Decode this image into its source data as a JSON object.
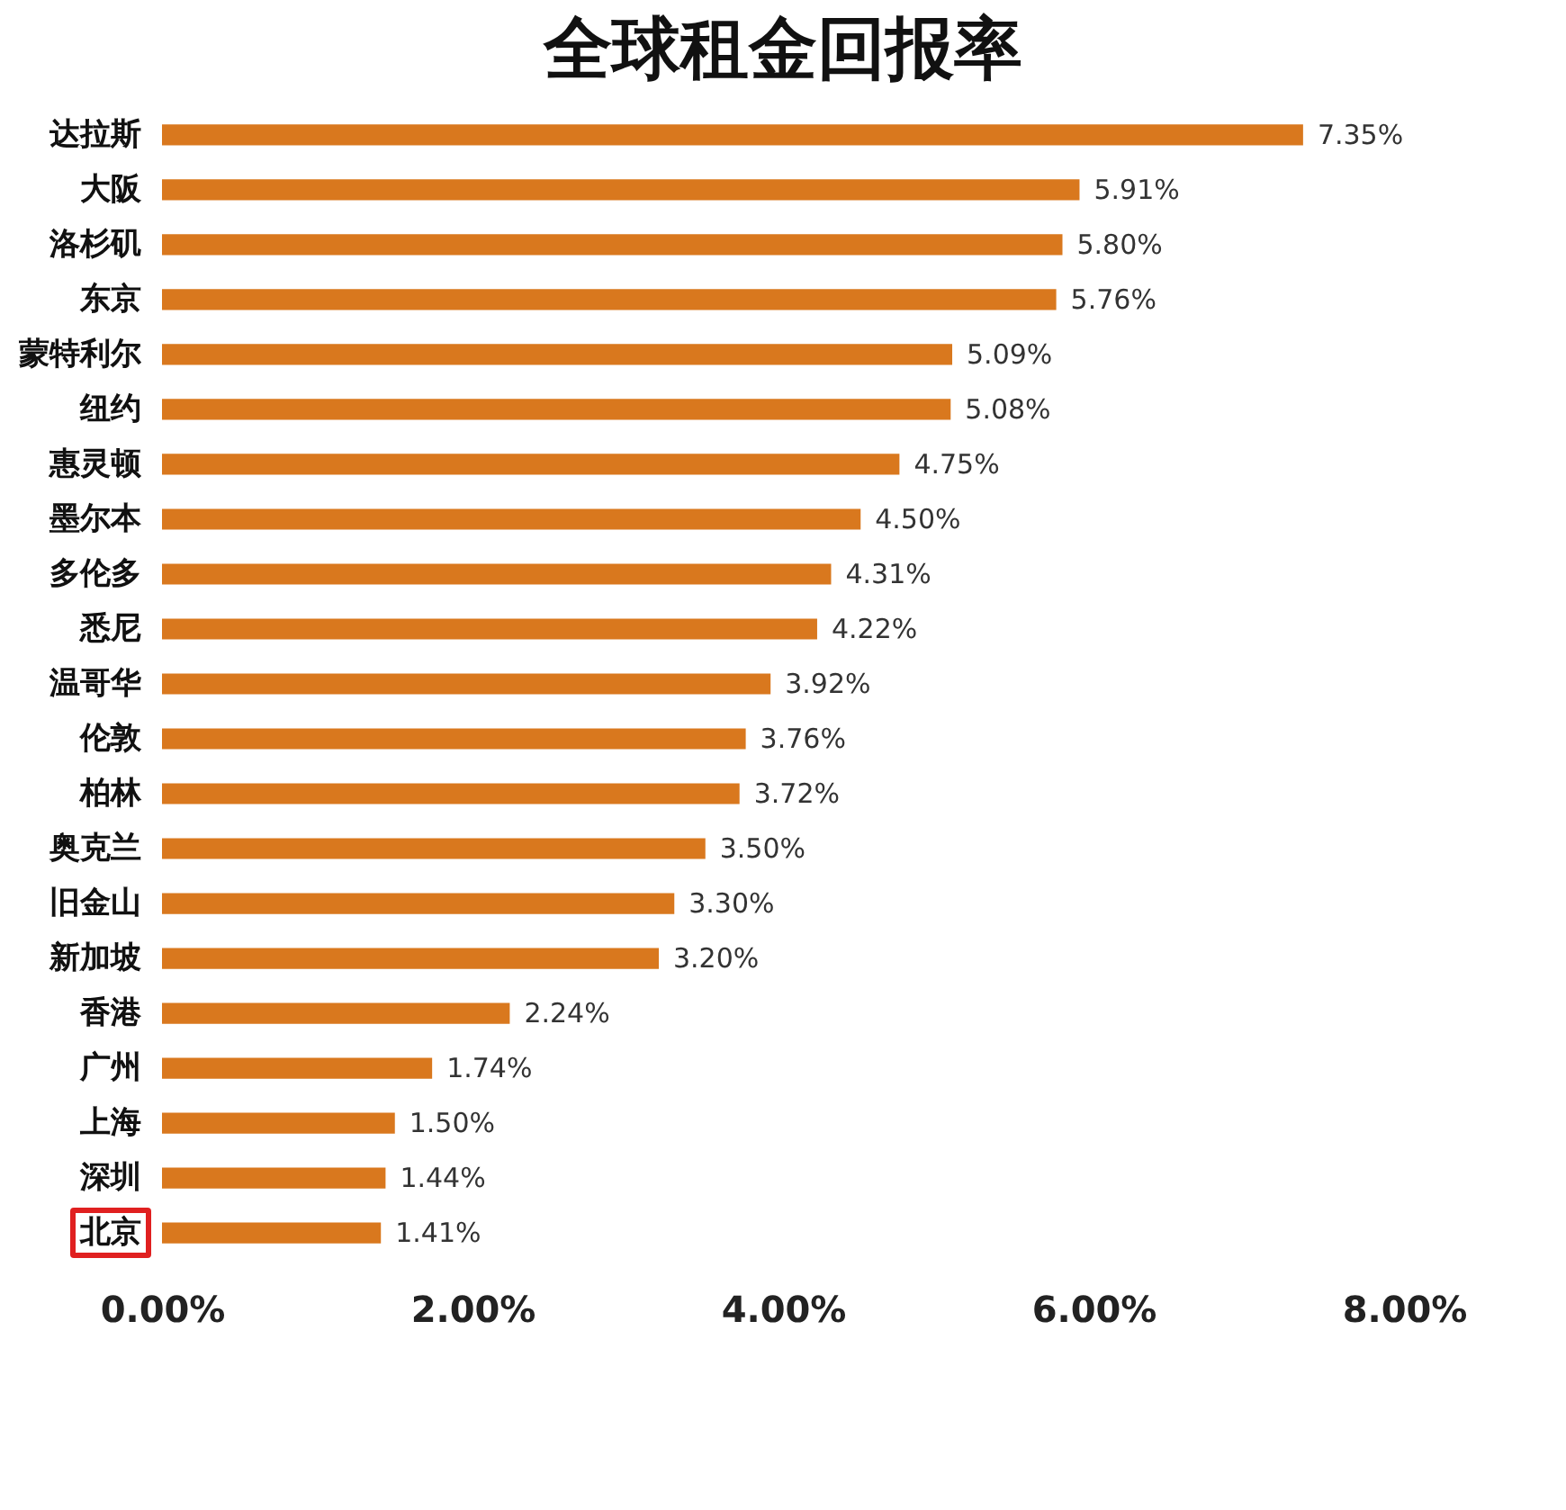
{
  "chart_data": {
    "type": "bar",
    "orientation": "horizontal",
    "title": "全球租金回报率",
    "categories": [
      "达拉斯",
      "大阪",
      "洛杉矶",
      "东京",
      "蒙特利尔",
      "纽约",
      "惠灵顿",
      "墨尔本",
      "多伦多",
      "悉尼",
      "温哥华",
      "伦敦",
      "柏林",
      "奥克兰",
      "旧金山",
      "新加坡",
      "香港",
      "广州",
      "上海",
      "深圳",
      "北京"
    ],
    "values": [
      7.35,
      5.91,
      5.8,
      5.76,
      5.09,
      5.08,
      4.75,
      4.5,
      4.31,
      4.22,
      3.92,
      3.76,
      3.72,
      3.5,
      3.3,
      3.2,
      2.24,
      1.74,
      1.5,
      1.44,
      1.41
    ],
    "value_labels": [
      "7.35%",
      "5.91%",
      "5.80%",
      "5.76%",
      "5.09%",
      "5.08%",
      "4.75%",
      "4.50%",
      "4.31%",
      "4.22%",
      "3.92%",
      "3.76%",
      "3.72%",
      "3.50%",
      "3.30%",
      "3.20%",
      "2.24%",
      "1.74%",
      "1.50%",
      "1.44%",
      "1.41%"
    ],
    "color": "#d9781e",
    "xlim": [
      0,
      8
    ],
    "xticks": [
      {
        "value": 0,
        "label": "0.00%"
      },
      {
        "value": 2,
        "label": "2.00%"
      },
      {
        "value": 4,
        "label": "4.00%"
      },
      {
        "value": 6,
        "label": "6.00%"
      },
      {
        "value": 8,
        "label": "8.00%"
      }
    ],
    "grid": false
  }
}
